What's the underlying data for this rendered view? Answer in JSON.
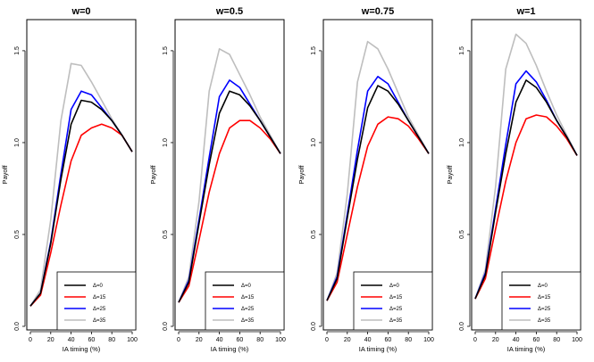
{
  "figure": {
    "xlabel": "IA timing (%)",
    "ylabel": "Payoff"
  },
  "legend": {
    "entries": [
      {
        "label": "Δ=0",
        "color": "#000000"
      },
      {
        "label": "Δ=15",
        "color": "#ff0000"
      },
      {
        "label": "Δ=25",
        "color": "#0000ff"
      },
      {
        "label": "Δ=35",
        "color": "#bebebe"
      }
    ]
  },
  "chart_data": [
    {
      "type": "line",
      "title": "w=0",
      "xlabel": "IA timing (%)",
      "ylabel": "Payoff",
      "x": [
        0,
        10,
        20,
        30,
        40,
        50,
        60,
        70,
        80,
        90,
        100
      ],
      "xticks": [
        "0",
        "20",
        "40",
        "60",
        "80",
        "100"
      ],
      "yticks": [
        "0.0",
        "0.5",
        "1.0",
        "1.5"
      ],
      "xlim": [
        0,
        100
      ],
      "ylim": [
        0,
        1.65
      ],
      "series": [
        {
          "name": "Δ=0",
          "color": "#000000",
          "values": [
            0.11,
            0.18,
            0.45,
            0.8,
            1.1,
            1.23,
            1.22,
            1.18,
            1.12,
            1.04,
            0.95
          ]
        },
        {
          "name": "Δ=15",
          "color": "#ff0000",
          "values": [
            0.11,
            0.17,
            0.4,
            0.66,
            0.9,
            1.04,
            1.08,
            1.1,
            1.08,
            1.04,
            0.95
          ]
        },
        {
          "name": "Δ=25",
          "color": "#0000ff",
          "values": [
            0.11,
            0.18,
            0.46,
            0.83,
            1.18,
            1.28,
            1.26,
            1.19,
            1.12,
            1.04,
            0.95
          ]
        },
        {
          "name": "Δ=35",
          "color": "#bebebe",
          "values": [
            0.11,
            0.2,
            0.58,
            1.12,
            1.43,
            1.42,
            1.33,
            1.23,
            1.13,
            1.04,
            0.95
          ]
        }
      ]
    },
    {
      "type": "line",
      "title": "w=0.5",
      "xlabel": "IA timing (%)",
      "ylabel": "Payoff",
      "x": [
        0,
        10,
        20,
        30,
        40,
        50,
        60,
        70,
        80,
        90,
        100
      ],
      "xticks": [
        "0",
        "20",
        "40",
        "60",
        "80",
        "100"
      ],
      "yticks": [
        "0.0",
        "0.5",
        "1.0",
        "1.5"
      ],
      "xlim": [
        0,
        100
      ],
      "ylim": [
        0,
        1.65
      ],
      "series": [
        {
          "name": "Δ=0",
          "color": "#000000",
          "values": [
            0.13,
            0.24,
            0.56,
            0.88,
            1.16,
            1.28,
            1.26,
            1.2,
            1.12,
            1.03,
            0.94
          ]
        },
        {
          "name": "Δ=15",
          "color": "#ff0000",
          "values": [
            0.13,
            0.22,
            0.47,
            0.73,
            0.94,
            1.08,
            1.12,
            1.12,
            1.08,
            1.02,
            0.94
          ]
        },
        {
          "name": "Δ=25",
          "color": "#0000ff",
          "values": [
            0.13,
            0.25,
            0.58,
            0.92,
            1.25,
            1.34,
            1.3,
            1.21,
            1.12,
            1.03,
            0.94
          ]
        },
        {
          "name": "Δ=35",
          "color": "#bebebe",
          "values": [
            0.13,
            0.27,
            0.68,
            1.28,
            1.51,
            1.48,
            1.37,
            1.26,
            1.14,
            1.04,
            0.94
          ]
        }
      ]
    },
    {
      "type": "line",
      "title": "w=0.75",
      "xlabel": "IA timing (%)",
      "ylabel": "Payoff",
      "x": [
        0,
        10,
        20,
        30,
        40,
        50,
        60,
        70,
        80,
        90,
        100
      ],
      "xticks": [
        "0",
        "20",
        "40",
        "60",
        "80",
        "100"
      ],
      "yticks": [
        "0.0",
        "0.5",
        "1.0",
        "1.5"
      ],
      "xlim": [
        0,
        100
      ],
      "ylim": [
        0,
        1.65
      ],
      "series": [
        {
          "name": "Δ=0",
          "color": "#000000",
          "values": [
            0.14,
            0.26,
            0.59,
            0.91,
            1.19,
            1.31,
            1.28,
            1.21,
            1.12,
            1.03,
            0.94
          ]
        },
        {
          "name": "Δ=15",
          "color": "#ff0000",
          "values": [
            0.14,
            0.24,
            0.5,
            0.76,
            0.98,
            1.1,
            1.14,
            1.13,
            1.09,
            1.02,
            0.94
          ]
        },
        {
          "name": "Δ=25",
          "color": "#0000ff",
          "values": [
            0.14,
            0.27,
            0.61,
            0.96,
            1.28,
            1.36,
            1.32,
            1.22,
            1.12,
            1.03,
            0.94
          ]
        },
        {
          "name": "Δ=35",
          "color": "#bebebe",
          "values": [
            0.14,
            0.29,
            0.72,
            1.33,
            1.55,
            1.51,
            1.4,
            1.27,
            1.14,
            1.04,
            0.94
          ]
        }
      ]
    },
    {
      "type": "line",
      "title": "w=1",
      "xlabel": "IA timing (%)",
      "ylabel": "Payoff",
      "x": [
        0,
        10,
        20,
        30,
        40,
        50,
        60,
        70,
        80,
        90,
        100
      ],
      "xticks": [
        "0",
        "20",
        "40",
        "60",
        "80",
        "100"
      ],
      "yticks": [
        "0.0",
        "0.5",
        "1.0",
        "1.5"
      ],
      "xlim": [
        0,
        100
      ],
      "ylim": [
        0,
        1.65
      ],
      "series": [
        {
          "name": "Δ=0",
          "color": "#000000",
          "values": [
            0.15,
            0.28,
            0.62,
            0.94,
            1.22,
            1.34,
            1.3,
            1.22,
            1.12,
            1.03,
            0.93
          ]
        },
        {
          "name": "Δ=15",
          "color": "#ff0000",
          "values": [
            0.15,
            0.26,
            0.53,
            0.79,
            1.0,
            1.13,
            1.15,
            1.14,
            1.09,
            1.02,
            0.93
          ]
        },
        {
          "name": "Δ=25",
          "color": "#0000ff",
          "values": [
            0.15,
            0.29,
            0.64,
            0.99,
            1.32,
            1.39,
            1.33,
            1.23,
            1.12,
            1.03,
            0.93
          ]
        },
        {
          "name": "Δ=35",
          "color": "#bebebe",
          "values": [
            0.15,
            0.31,
            0.76,
            1.4,
            1.59,
            1.54,
            1.42,
            1.28,
            1.15,
            1.04,
            0.93
          ]
        }
      ]
    }
  ]
}
